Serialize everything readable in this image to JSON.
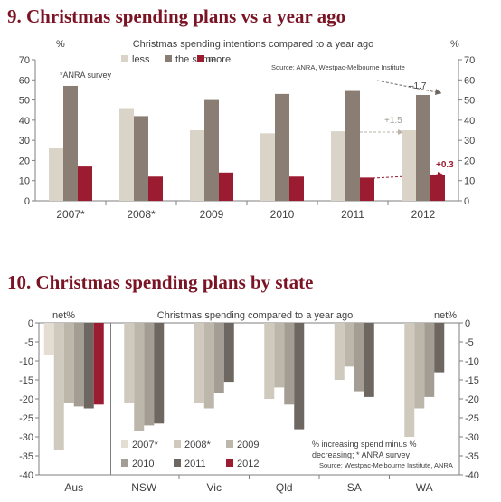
{
  "colors": {
    "title": "#7a1425",
    "less": "#d9d3c8",
    "same": "#8a7e74",
    "more": "#9b1b30",
    "axis": "#7f7f7f",
    "text": "#404040",
    "c2007": "#e3ddd3",
    "c2008": "#cfc9be",
    "c2009": "#bdb7ab",
    "c2010": "#a39d94",
    "c2011": "#6e6661",
    "c2012": "#9b1b30"
  },
  "chart_data": [
    {
      "type": "bar",
      "title": "9. Christmas spending plans vs a year ago",
      "subtitle": "Christmas spending intentions compared to a year ago",
      "ylabel_left": "%",
      "ylabel_right": "%",
      "ylim": [
        0,
        70
      ],
      "yticks": [
        "0",
        "10",
        "20",
        "30",
        "40",
        "50",
        "60",
        "70"
      ],
      "categories": [
        "2007*",
        "2008*",
        "2009",
        "2010",
        "2011",
        "2012"
      ],
      "series": [
        {
          "name": "less",
          "values": [
            26,
            46,
            35,
            33.5,
            34.5,
            35
          ]
        },
        {
          "name": "the same",
          "values": [
            57,
            42,
            50,
            53,
            54.5,
            52.5
          ]
        },
        {
          "name": "more",
          "values": [
            17,
            12,
            14,
            12,
            11.5,
            13
          ]
        }
      ],
      "notes": [
        "*ANRA survey"
      ],
      "source": "Source: ANRA, Westpac-Melbourne Institute",
      "annotations": [
        "–1.7",
        "+1.5",
        "+0.3"
      ],
      "legend_position": "top-left",
      "grid": false
    },
    {
      "type": "bar",
      "title": "10. Christmas spending plans by state",
      "subtitle": "Christmas spending compared to a year ago",
      "ylabel_left": "net%",
      "ylabel_right": "net%",
      "ylim": [
        -40,
        0
      ],
      "yticks": [
        "0",
        "-5",
        "-10",
        "-15",
        "-20",
        "-25",
        "-30",
        "-35",
        "-40"
      ],
      "categories": [
        "Aus",
        "NSW",
        "Vic",
        "Qld",
        "SA",
        "WA"
      ],
      "series": [
        {
          "name": "2007*",
          "values": [
            -8.5,
            0,
            0,
            0,
            0,
            0
          ]
        },
        {
          "name": "2008*",
          "values": [
            -33.5,
            -21,
            -21,
            -20,
            -15,
            -30
          ]
        },
        {
          "name": "2009",
          "values": [
            -21,
            -28.5,
            -22.5,
            -17,
            -11.5,
            -22.5
          ]
        },
        {
          "name": "2010",
          "values": [
            -22,
            -27,
            -18.5,
            -21.5,
            -18,
            -19.5
          ]
        },
        {
          "name": "2011",
          "values": [
            -22.5,
            -26.5,
            -15.5,
            -28,
            -19.5,
            -13
          ]
        },
        {
          "name": "2012",
          "values": [
            -21.5,
            0,
            0,
            0,
            0,
            0
          ]
        }
      ],
      "notes": [
        "% increasing spend minus % decreasing; * ANRA survey",
        "Source: Westpac-Melbourne Institute, ANRA"
      ],
      "legend_position": "bottom-left",
      "grid": false
    }
  ]
}
